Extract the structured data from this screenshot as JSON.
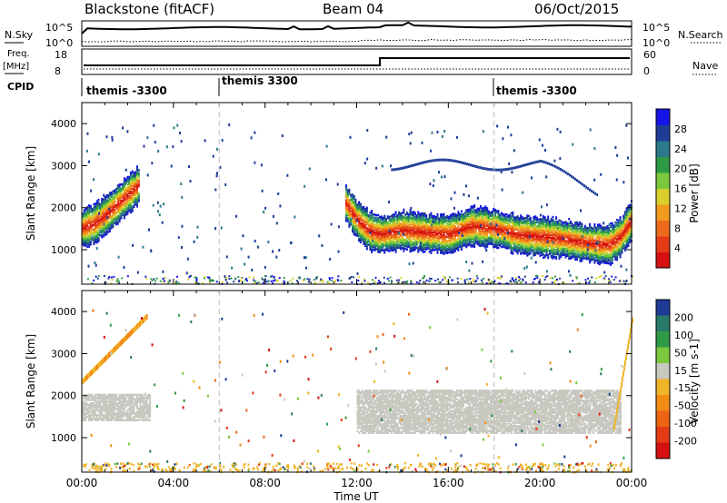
{
  "header": {
    "station": "Blackstone (fitACF)",
    "beam": "Beam 04",
    "date": "06/Oct/2015"
  },
  "sky_panel": {
    "left_label": "N.Sky",
    "right_label": "N.Search",
    "left_ticks": [
      "10^5",
      "10^0"
    ],
    "right_ticks": [
      "10^5",
      "10^0"
    ]
  },
  "freq_panel": {
    "left_label": "Freq.",
    "left_unit": "[MHz]",
    "right_label": "Nave",
    "left_ticks": [
      "18",
      "8"
    ],
    "right_ticks": [
      "60",
      "0"
    ]
  },
  "cpid": {
    "label": "CPID",
    "segments": [
      {
        "start_hour": 0,
        "label": "themis -3300"
      },
      {
        "start_hour": 6,
        "label": "themis 3300"
      },
      {
        "start_hour": 18,
        "label": "themis -3300"
      }
    ]
  },
  "x_axis": {
    "label": "Time UT",
    "ticks": [
      "00:00",
      "04:00",
      "08:00",
      "12:00",
      "16:00",
      "20:00",
      "00:00"
    ],
    "range_hours": [
      0,
      24
    ]
  },
  "chart_data": [
    {
      "type": "heatmap",
      "title": "",
      "ylabel": "Slant Range [km]",
      "xlabel": "",
      "ylim": [
        180,
        4500
      ],
      "yticks": [
        1000,
        2000,
        3000,
        4000
      ],
      "colorbar": {
        "label": "Power [dB]",
        "ticks": [
          "4",
          "8",
          "12",
          "16",
          "20",
          "24",
          "28"
        ],
        "colors": [
          "#1414e6",
          "#1e3c96",
          "#2a7a8a",
          "#2e9a46",
          "#7ac83c",
          "#d8cf2a",
          "#f29a1e",
          "#ec6a1c",
          "#e43a16",
          "#d41010"
        ]
      },
      "series": [
        {
          "kind": "band",
          "hours": [
            0.0,
            0.5,
            1.0,
            1.5,
            2.0,
            2.5
          ],
          "center_km": [
            1500,
            1600,
            1800,
            2050,
            2300,
            2550
          ]
        },
        {
          "kind": "band",
          "hours": [
            11.5,
            12.0,
            12.5,
            13.0,
            14.0,
            15.0,
            16.0,
            17.0,
            18.0,
            19.0,
            20.0,
            21.0,
            22.0,
            23.0,
            23.5,
            24.0
          ],
          "center_km": [
            2100,
            1700,
            1450,
            1350,
            1450,
            1400,
            1350,
            1550,
            1500,
            1350,
            1300,
            1250,
            1150,
            1100,
            1300,
            1700
          ]
        }
      ]
    },
    {
      "type": "heatmap",
      "title": "",
      "ylabel": "Slant Range [km]",
      "xlabel": "Time UT",
      "ylim": [
        180,
        4500
      ],
      "yticks": [
        1000,
        2000,
        3000,
        4000
      ],
      "colorbar": {
        "label": "Velocity [m s-1]",
        "ticks": [
          "200",
          "100",
          "50",
          "15",
          "-15",
          "-50",
          "-100",
          "-200"
        ],
        "colors": [
          "#1e3c96",
          "#2a7a6a",
          "#2e9a46",
          "#7ac83c",
          "#c8c8c0",
          "#f0b428",
          "#f28c14",
          "#ec6414",
          "#e43a16",
          "#d41010"
        ]
      },
      "series": [
        {
          "kind": "ground_scatter",
          "hours": [
            0.0,
            3.0
          ],
          "range_km": [
            1400,
            2000
          ]
        },
        {
          "kind": "ground_scatter",
          "hours": [
            12.0,
            23.5
          ],
          "range_km": [
            1100,
            2100
          ]
        }
      ]
    }
  ]
}
